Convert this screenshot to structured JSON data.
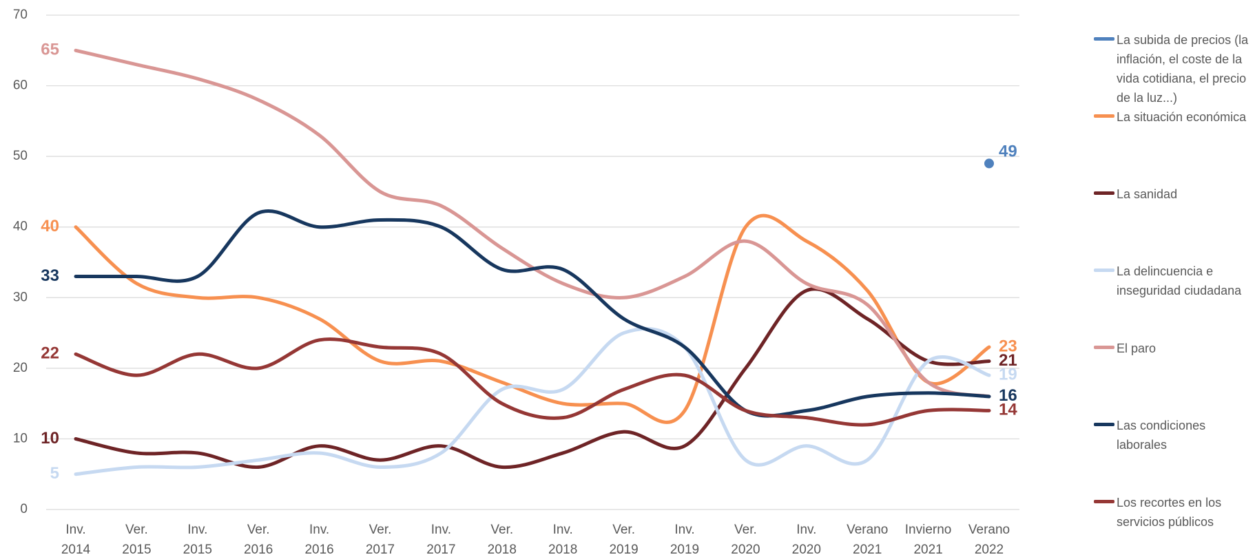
{
  "chart_data": {
    "type": "line",
    "categories": [
      [
        "Inv.",
        "2014"
      ],
      [
        "Ver.",
        "2015"
      ],
      [
        "Inv.",
        "2015"
      ],
      [
        "Ver.",
        "2016"
      ],
      [
        "Inv.",
        "2016"
      ],
      [
        "Ver.",
        "2017"
      ],
      [
        "Inv.",
        "2017"
      ],
      [
        "Ver.",
        "2018"
      ],
      [
        "Inv.",
        "2018"
      ],
      [
        "Ver.",
        "2019"
      ],
      [
        "Inv.",
        "2019"
      ],
      [
        "Ver.",
        "2020"
      ],
      [
        "Inv.",
        "2020"
      ],
      [
        "Verano",
        "2021"
      ],
      [
        "Invierno",
        "2021"
      ],
      [
        "Verano",
        "2022"
      ]
    ],
    "ylim": [
      0,
      70
    ],
    "yticks": [
      0,
      10,
      20,
      30,
      40,
      50,
      60,
      70
    ],
    "grid": true,
    "smooth": true,
    "legend": "right",
    "series": [
      {
        "name": "La subida de precios (la inflación, el coste de la vida cotidiana, el precio de la luz...)",
        "color": "#4f81bd",
        "data_labels": [
          15
        ],
        "values": [
          null,
          null,
          null,
          null,
          null,
          null,
          null,
          null,
          null,
          null,
          null,
          null,
          null,
          null,
          null,
          49
        ]
      },
      {
        "name": "La situación económica",
        "color": "#f79050",
        "data_labels": [
          0,
          15
        ],
        "values": [
          40,
          32,
          30,
          30,
          27,
          21,
          21,
          18,
          15,
          15,
          14,
          40,
          38,
          31,
          18,
          23
        ]
      },
      {
        "name": "La sanidad",
        "color": "#6e2426",
        "data_labels": [
          0,
          15
        ],
        "values": [
          10,
          8,
          8,
          6,
          9,
          7,
          9,
          6,
          8,
          11,
          9,
          20,
          31,
          27,
          21,
          21
        ]
      },
      {
        "name": "La delincuencia e inseguridad ciudadana",
        "color": "#c6d9f1",
        "data_labels": [
          0,
          15
        ],
        "values": [
          5,
          6,
          6,
          7,
          8,
          6,
          8,
          17,
          17,
          25,
          23,
          7,
          9,
          7,
          21,
          19
        ]
      },
      {
        "name": "El paro",
        "color": "#d99694",
        "data_labels": [
          0
        ],
        "values": [
          65,
          63,
          61,
          58,
          53,
          45,
          43,
          37,
          32,
          30,
          33,
          38,
          32,
          29,
          18,
          16
        ]
      },
      {
        "name": "Las condiciones laborales",
        "color": "#17375e",
        "data_labels": [
          0,
          15
        ],
        "values": [
          33,
          33,
          33,
          42,
          40,
          41,
          40,
          34,
          34,
          27,
          23,
          14,
          14,
          16,
          16.5,
          16
        ]
      },
      {
        "name": "Los recortes en los servicios públicos",
        "color": "#953735",
        "data_labels": [
          0,
          15
        ],
        "values": [
          22,
          19,
          22,
          20,
          24,
          23,
          22,
          15,
          13,
          17,
          19,
          14,
          13,
          12,
          14,
          14
        ]
      }
    ]
  }
}
